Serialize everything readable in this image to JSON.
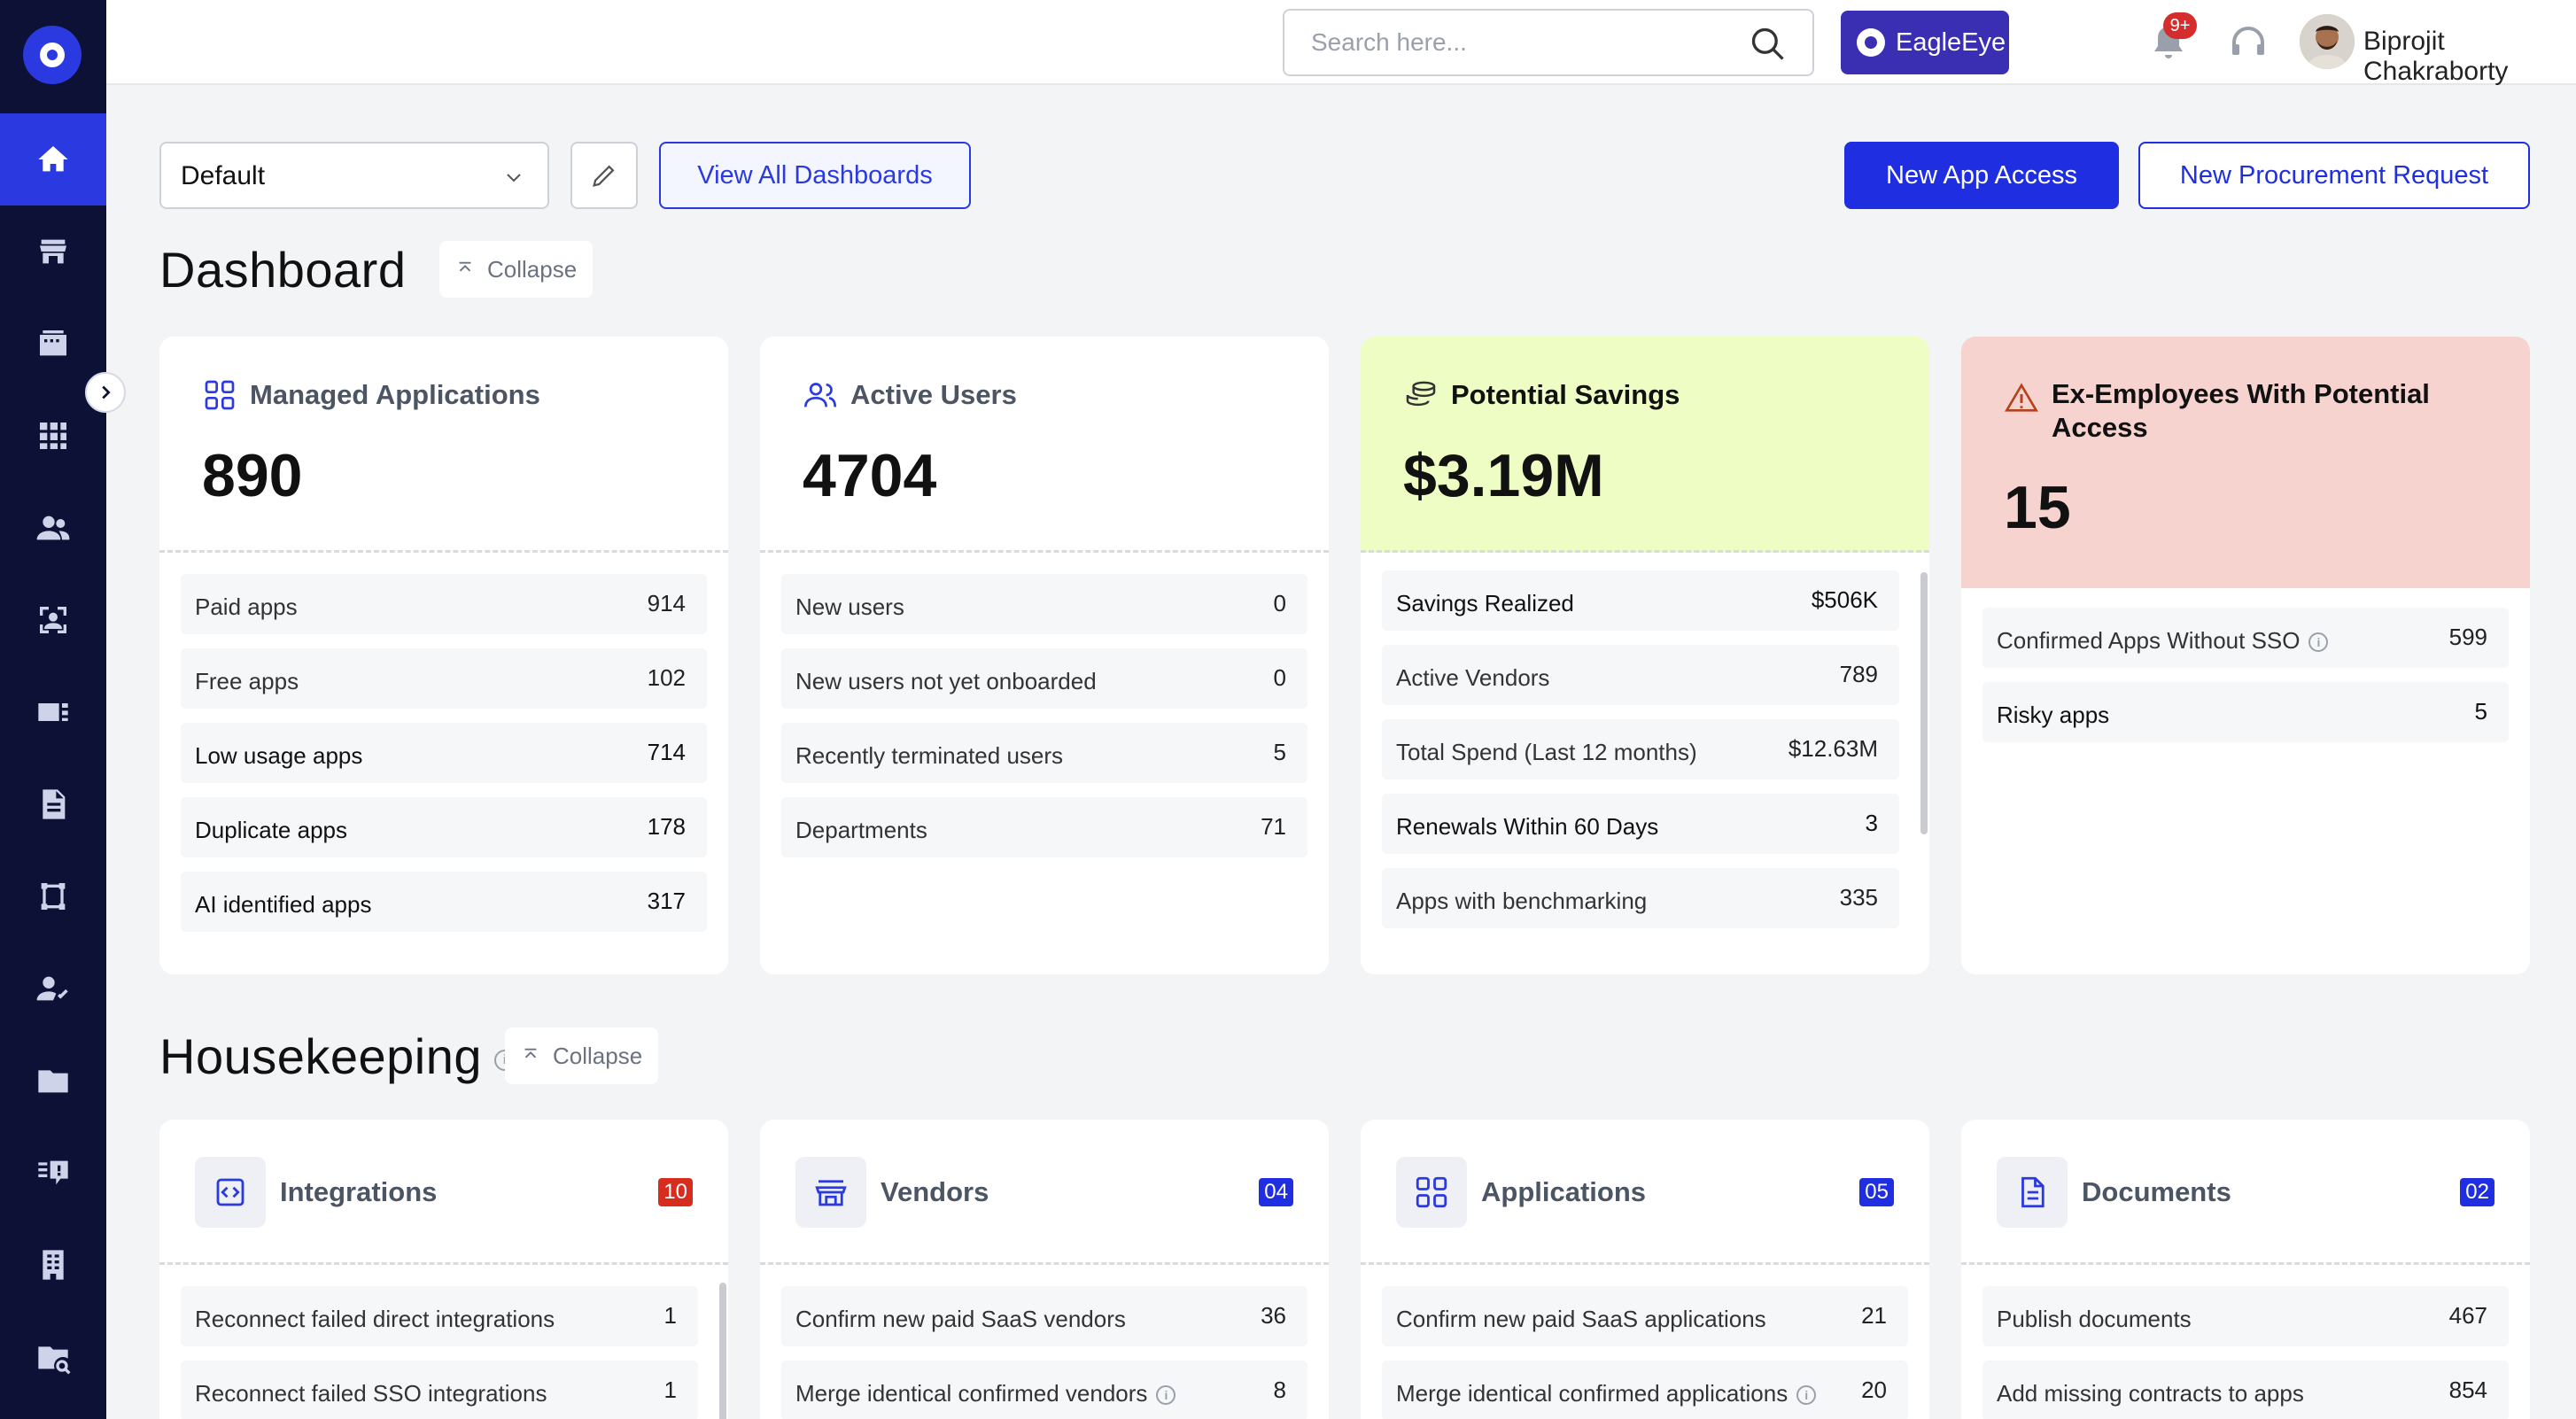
{
  "search": {
    "placeholder": "Search here..."
  },
  "topbar": {
    "eagle_label": "EagleEye",
    "notif_badge": "9+",
    "user_name": "Biprojit Chakraborty"
  },
  "controls": {
    "dashboard_select": "Default",
    "view_all_label": "View All Dashboards",
    "new_app_access_label": "New App Access",
    "new_procurement_label": "New Procurement Request"
  },
  "dashboard": {
    "title": "Dashboard",
    "collapse_label": "Collapse"
  },
  "cards": [
    {
      "label": "Managed Applications",
      "value": "890",
      "rows": [
        {
          "label": "Paid apps",
          "value": "914"
        },
        {
          "label": "Free apps",
          "value": "102"
        },
        {
          "label": "Low usage apps",
          "value": "714"
        },
        {
          "label": "Duplicate apps",
          "value": "178"
        },
        {
          "label": "AI identified apps",
          "value": "317"
        }
      ]
    },
    {
      "label": "Active Users",
      "value": "4704",
      "rows": [
        {
          "label": "New users",
          "value": "0"
        },
        {
          "label": "New users not yet onboarded",
          "value": "0"
        },
        {
          "label": "Recently terminated users",
          "value": "5"
        },
        {
          "label": "Departments",
          "value": "71"
        }
      ]
    },
    {
      "label": "Potential Savings",
      "value": "$3.19M",
      "bg": "#edfdc4",
      "rows": [
        {
          "label": "Savings Realized",
          "value": "$506K"
        },
        {
          "label": "Active Vendors",
          "value": "789"
        },
        {
          "label": "Total Spend (Last 12 months)",
          "value": "$12.63M"
        },
        {
          "label": "Renewals Within 60 Days",
          "value": "3"
        },
        {
          "label": "Apps with benchmarking",
          "value": "335"
        }
      ]
    },
    {
      "label": "Ex-Employees With Potential Access",
      "value": "15",
      "bg": "#f7d3d0",
      "rows": [
        {
          "label": "Confirmed Apps Without SSO",
          "value": "599"
        },
        {
          "label": "Risky apps",
          "value": "5"
        }
      ]
    }
  ],
  "housekeeping": {
    "title": "Housekeeping",
    "collapse_label": "Collapse",
    "cards": [
      {
        "title": "Integrations",
        "count": "10",
        "count_color": "#d62d20",
        "rows": [
          {
            "label": "Reconnect failed direct integrations",
            "value": "1"
          },
          {
            "label": "Reconnect failed SSO integrations",
            "value": "1"
          }
        ]
      },
      {
        "title": "Vendors",
        "count": "04",
        "count_color": "#1f2ee0",
        "rows": [
          {
            "label": "Confirm new paid SaaS vendors",
            "value": "36"
          },
          {
            "label": "Merge identical confirmed vendors",
            "value": "8"
          }
        ]
      },
      {
        "title": "Applications",
        "count": "05",
        "count_color": "#1f2ee0",
        "rows": [
          {
            "label": "Confirm new paid SaaS applications",
            "value": "21"
          },
          {
            "label": "Merge identical confirmed applications",
            "value": "20"
          }
        ]
      },
      {
        "title": "Documents",
        "count": "02",
        "count_color": "#1f2ee0",
        "rows": [
          {
            "label": "Publish documents",
            "value": "467"
          },
          {
            "label": "Add missing contracts to apps",
            "value": "854"
          }
        ]
      }
    ]
  },
  "colors": {
    "sidebar": "#0d1136",
    "accent": "#1f2ee0",
    "savings_bg": "#edfdc4",
    "ex_employee_bg": "#f7d3d0",
    "danger": "#d62d20"
  }
}
